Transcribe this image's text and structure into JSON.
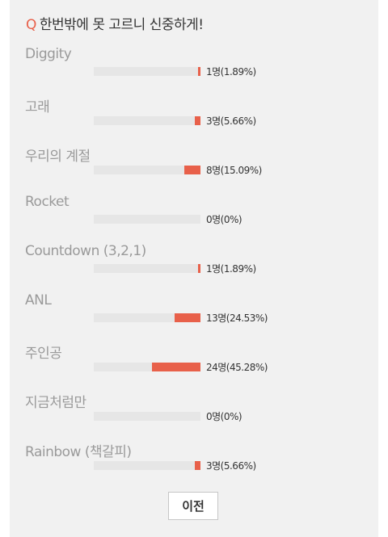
{
  "question": {
    "marker": "Q",
    "text": "한번밖에 못 고르니 신중하게!"
  },
  "options": [
    {
      "label": "Diggity",
      "result": "1명(1.89%)",
      "percent": 1.89
    },
    {
      "label": "고래",
      "result": "3명(5.66%)",
      "percent": 5.66
    },
    {
      "label": "우리의 계절",
      "result": "8명(15.09%)",
      "percent": 15.09
    },
    {
      "label": "Rocket",
      "result": "0명(0%)",
      "percent": 0
    },
    {
      "label": "Countdown (3,2,1)",
      "result": "1명(1.89%)",
      "percent": 1.89
    },
    {
      "label": "ANL",
      "result": "13명(24.53%)",
      "percent": 24.53
    },
    {
      "label": "주인공",
      "result": "24명(45.28%)",
      "percent": 45.28
    },
    {
      "label": "지금처럼만",
      "result": "0명(0%)",
      "percent": 0
    },
    {
      "label": "Rainbow (책갈피)",
      "result": "3명(5.66%)",
      "percent": 5.66
    }
  ],
  "footer": {
    "prev_label": "이전"
  },
  "colors": {
    "accent": "#e8604a",
    "track": "#e6e6e6",
    "panel": "#f1f1f1"
  }
}
